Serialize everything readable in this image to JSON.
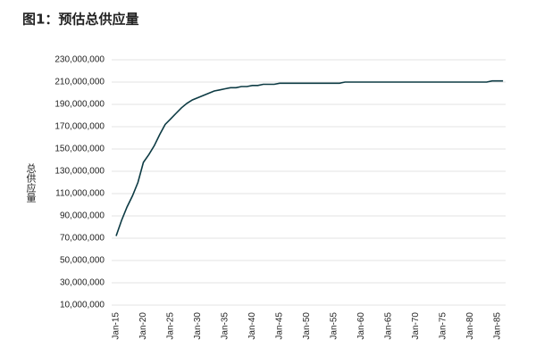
{
  "chart_data": {
    "type": "line",
    "title": "图1：预估总供应量",
    "y_label": "总供应量",
    "categories": [
      "Jan-15",
      null,
      null,
      null,
      null,
      "Jan-20",
      null,
      null,
      null,
      null,
      "Jan-25",
      null,
      null,
      null,
      null,
      "Jan-30",
      null,
      null,
      null,
      null,
      "Jan-35",
      null,
      null,
      null,
      null,
      "Jan-40",
      null,
      null,
      null,
      null,
      "Jan-45",
      null,
      null,
      null,
      null,
      "Jan-50",
      null,
      null,
      null,
      null,
      "Jan-55",
      null,
      null,
      null,
      null,
      "Jan-60",
      null,
      null,
      null,
      null,
      "Jan-65",
      null,
      null,
      null,
      null,
      "Jan-70",
      null,
      null,
      null,
      null,
      "Jan-75",
      null,
      null,
      null,
      null,
      "Jan-80",
      null,
      null,
      null,
      null,
      "Jan-85",
      null
    ],
    "values": [
      72000000,
      86000000,
      98000000,
      108000000,
      120000000,
      138000000,
      145000000,
      153000000,
      163000000,
      172000000,
      177000000,
      182000000,
      187000000,
      191000000,
      194000000,
      196000000,
      198000000,
      200000000,
      202000000,
      203000000,
      204000000,
      205000000,
      205000000,
      206000000,
      206000000,
      207000000,
      207000000,
      208000000,
      208000000,
      208000000,
      209000000,
      209000000,
      209000000,
      209000000,
      209000000,
      209000000,
      209000000,
      209000000,
      209000000,
      209000000,
      209000000,
      209000000,
      210000000,
      210000000,
      210000000,
      210000000,
      210000000,
      210000000,
      210000000,
      210000000,
      210000000,
      210000000,
      210000000,
      210000000,
      210000000,
      210000000,
      210000000,
      210000000,
      210000000,
      210000000,
      210000000,
      210000000,
      210000000,
      210000000,
      210000000,
      210000000,
      210000000,
      210000000,
      210000000,
      211000000,
      211000000,
      211000000
    ],
    "color": "#0d3b44",
    "ylim": [
      10000000,
      230000000
    ],
    "yticks": [
      {
        "value": 10000000,
        "label": "10,000,000"
      },
      {
        "value": 30000000,
        "label": "30,000,000"
      },
      {
        "value": 50000000,
        "label": "50,000,000"
      },
      {
        "value": 70000000,
        "label": "70,000,000"
      },
      {
        "value": 90000000,
        "label": "90,000,000"
      },
      {
        "value": 110000000,
        "label": "110,000,000"
      },
      {
        "value": 130000000,
        "label": "130,000,000"
      },
      {
        "value": 150000000,
        "label": "150,000,000"
      },
      {
        "value": 170000000,
        "label": "170,000,000"
      },
      {
        "value": 190000000,
        "label": "190,000,000"
      },
      {
        "value": 210000000,
        "label": "210,000,000"
      },
      {
        "value": 230000000,
        "label": "230,000,000"
      }
    ],
    "grid": true
  }
}
